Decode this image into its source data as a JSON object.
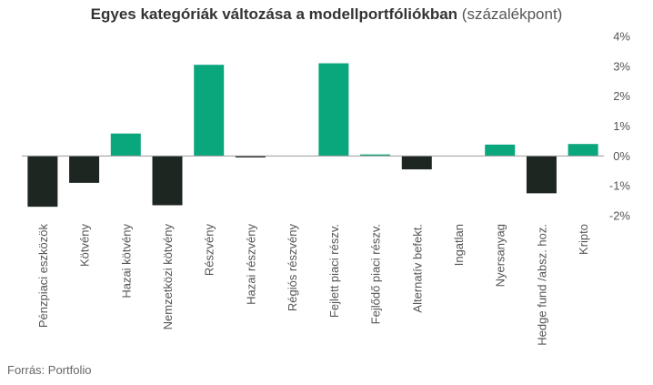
{
  "chart_data": {
    "type": "bar",
    "title_bold": "Egyes kategóriák változása a modellportfóliókban",
    "title_light": "(százalékpont)",
    "categories": [
      "Pénzpiaci eszközök",
      "Kötvény",
      "Hazai kötvény",
      "Nemzetközi kötvény",
      "Részvény",
      "Hazai részvény",
      "Régiós részvény",
      "Fejlett piaci részv.",
      "Fejlődő piaci részv.",
      "Alternatív befekt.",
      "Ingatlan",
      "Nyersanyag",
      "Hedge fund /absz. hoz.",
      "Kripto"
    ],
    "values": [
      -1.7,
      -0.9,
      0.75,
      -1.65,
      3.05,
      -0.05,
      0.0,
      3.1,
      0.05,
      -0.45,
      0.0,
      0.38,
      -1.25,
      0.4
    ],
    "colors": [
      "#1e2622",
      "#1e2622",
      "#0aa67c",
      "#1e2622",
      "#0aa67c",
      "#1e2622",
      "#0aa67c",
      "#0aa67c",
      "#0aa67c",
      "#1e2622",
      "#0aa67c",
      "#0aa67c",
      "#1e2622",
      "#0aa67c"
    ],
    "ylim": [
      -2,
      4
    ],
    "yticks": [
      -2,
      -1,
      0,
      1,
      2,
      3,
      4
    ],
    "ytick_labels": [
      "-2%",
      "-1%",
      "0%",
      "1%",
      "2%",
      "3%",
      "4%"
    ],
    "xlabel": "",
    "ylabel": "",
    "legend": "none",
    "grid": false
  },
  "source": "Forrás: Portfolio"
}
